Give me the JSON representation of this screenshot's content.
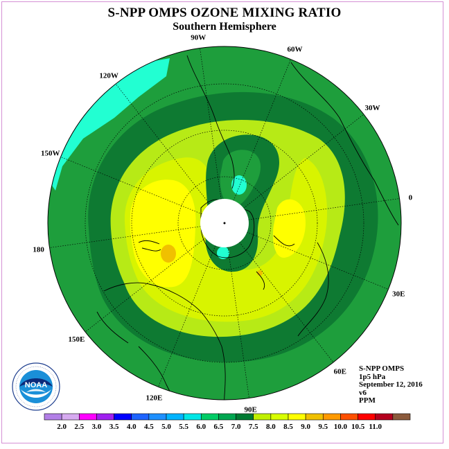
{
  "title": "S-NPP OMPS OZONE MIXING RATIO",
  "subtitle": "Southern Hemisphere",
  "longitude_labels": [
    {
      "text": "90W",
      "lon": -90
    },
    {
      "text": "60W",
      "lon": -60
    },
    {
      "text": "30W",
      "lon": -30
    },
    {
      "text": "0",
      "lon": 0
    },
    {
      "text": "30E",
      "lon": 30
    },
    {
      "text": "60E",
      "lon": 60
    },
    {
      "text": "90E",
      "lon": 90
    },
    {
      "text": "120E",
      "lon": 120
    },
    {
      "text": "150E",
      "lon": 150
    },
    {
      "text": "180",
      "lon": 180
    },
    {
      "text": "150W",
      "lon": -150
    },
    {
      "text": "120W",
      "lon": -120
    }
  ],
  "info": {
    "product": "S-NPP OMPS",
    "level": "1p5 hPa",
    "date": "September 12, 2016",
    "version": "v6",
    "units": "PPM"
  },
  "logo": {
    "text": "NOAA",
    "ring_text": "NATIONAL OCEANIC AND ATMOSPHERIC ADMINISTRATION · U.S. DEPARTMENT OF COMMERCE"
  },
  "colorbar": {
    "labels": [
      "2.0",
      "2.5",
      "3.0",
      "3.5",
      "4.0",
      "4.5",
      "5.0",
      "5.5",
      "6.0",
      "6.5",
      "7.0",
      "7.5",
      "8.0",
      "8.5",
      "9.0",
      "9.5",
      "10.0",
      "10.5",
      "11.0"
    ],
    "colors": [
      "#b27fe6",
      "#d6aaf0",
      "#ff00ff",
      "#a020f0",
      "#0000ff",
      "#1e64ff",
      "#1e90ff",
      "#00b4ff",
      "#00e6e6",
      "#00cc66",
      "#00a650",
      "#007a32",
      "#c0f000",
      "#d8ff00",
      "#ffff00",
      "#f0c000",
      "#ff9a00",
      "#ff5000",
      "#ff0000",
      "#b4001e",
      "#8b5a3c"
    ]
  },
  "map_colors": {
    "ocean_ring": "#1e9e3c",
    "dark_green": "#0e7a32",
    "cyan": "#22ffd2",
    "light_green": "#b7ea16",
    "yellow_green": "#d8f400",
    "yellow": "#ffff00",
    "orange": "#f0c000"
  }
}
